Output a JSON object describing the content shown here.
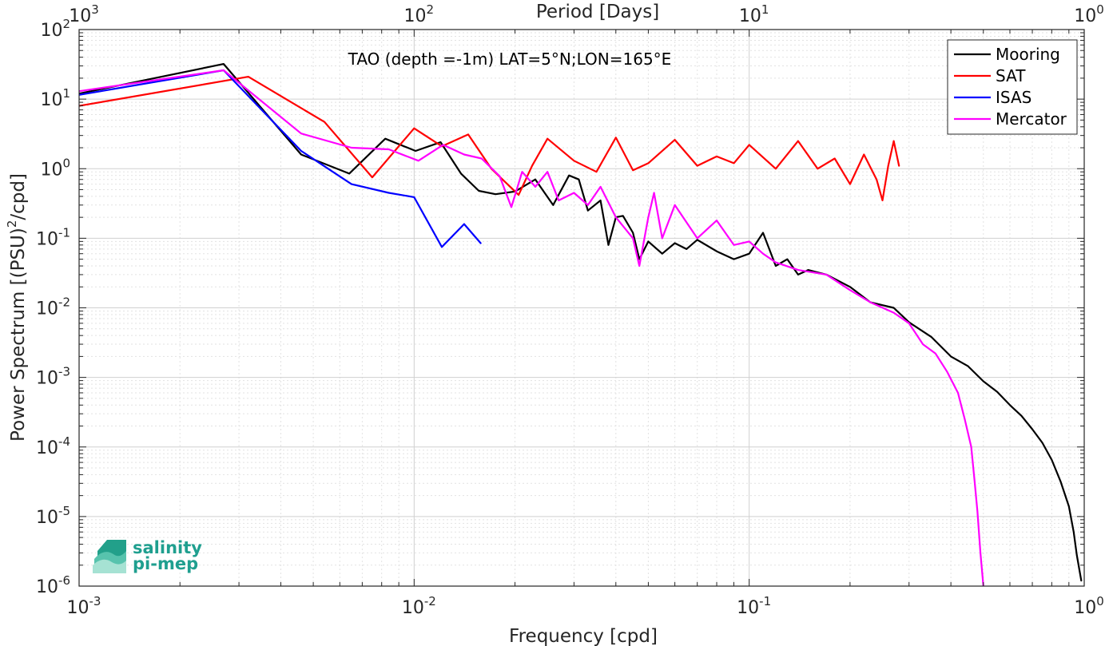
{
  "chart_data": {
    "type": "line",
    "annotation": "TAO (depth =-1m) LAT=5°N;LON=165°E",
    "xlabel": "Frequency [cpd]",
    "ylabel_parts": [
      "Power Spectrum [(PSU)",
      "2",
      "/cpd]"
    ],
    "x2label": "Period [Days]",
    "x_scale": "log",
    "y_scale": "log",
    "xlim": [
      0.001,
      1
    ],
    "ylim": [
      1e-06,
      100
    ],
    "x2lim": [
      1000,
      1
    ],
    "grid": true,
    "legend_position": "top-right",
    "x_ticks": [
      {
        "base": "10",
        "exp": "-3"
      },
      {
        "base": "10",
        "exp": "-2"
      },
      {
        "base": "10",
        "exp": "-1"
      },
      {
        "base": "10",
        "exp": "0"
      }
    ],
    "y_ticks": [
      {
        "base": "10",
        "exp": "2"
      },
      {
        "base": "10",
        "exp": "1"
      },
      {
        "base": "10",
        "exp": "0"
      },
      {
        "base": "10",
        "exp": "-1"
      },
      {
        "base": "10",
        "exp": "-2"
      },
      {
        "base": "10",
        "exp": "-3"
      },
      {
        "base": "10",
        "exp": "-4"
      },
      {
        "base": "10",
        "exp": "-5"
      },
      {
        "base": "10",
        "exp": "-6"
      }
    ],
    "x2_ticks": [
      {
        "base": "10",
        "exp": "3"
      },
      {
        "base": "10",
        "exp": "2"
      },
      {
        "base": "10",
        "exp": "1"
      },
      {
        "base": "10",
        "exp": "0"
      }
    ],
    "series": [
      {
        "name": "Mooring",
        "color": "#000000",
        "points": [
          [
            0.001,
            12
          ],
          [
            0.0027,
            32
          ],
          [
            0.0046,
            1.6
          ],
          [
            0.0064,
            0.85
          ],
          [
            0.0082,
            2.7
          ],
          [
            0.0101,
            1.8
          ],
          [
            0.012,
            2.4
          ],
          [
            0.0138,
            0.85
          ],
          [
            0.0156,
            0.48
          ],
          [
            0.0175,
            0.43
          ],
          [
            0.02,
            0.47
          ],
          [
            0.023,
            0.7
          ],
          [
            0.026,
            0.3
          ],
          [
            0.029,
            0.8
          ],
          [
            0.031,
            0.7
          ],
          [
            0.033,
            0.25
          ],
          [
            0.036,
            0.35
          ],
          [
            0.038,
            0.08
          ],
          [
            0.04,
            0.2
          ],
          [
            0.042,
            0.21
          ],
          [
            0.045,
            0.12
          ],
          [
            0.047,
            0.05
          ],
          [
            0.05,
            0.09
          ],
          [
            0.055,
            0.06
          ],
          [
            0.06,
            0.085
          ],
          [
            0.065,
            0.07
          ],
          [
            0.07,
            0.095
          ],
          [
            0.08,
            0.065
          ],
          [
            0.09,
            0.05
          ],
          [
            0.1,
            0.06
          ],
          [
            0.11,
            0.12
          ],
          [
            0.12,
            0.04
          ],
          [
            0.13,
            0.05
          ],
          [
            0.14,
            0.03
          ],
          [
            0.15,
            0.035
          ],
          [
            0.17,
            0.03
          ],
          [
            0.2,
            0.02
          ],
          [
            0.23,
            0.012
          ],
          [
            0.27,
            0.01
          ],
          [
            0.3,
            0.0062
          ],
          [
            0.35,
            0.0038
          ],
          [
            0.4,
            0.002
          ],
          [
            0.45,
            0.00145
          ],
          [
            0.5,
            0.00088
          ],
          [
            0.55,
            0.00062
          ],
          [
            0.6,
            0.0004
          ],
          [
            0.65,
            0.00028
          ],
          [
            0.7,
            0.00018
          ],
          [
            0.75,
            0.000115
          ],
          [
            0.8,
            6.5e-05
          ],
          [
            0.85,
            3.2e-05
          ],
          [
            0.9,
            1.4e-05
          ],
          [
            0.93,
            6e-06
          ],
          [
            0.95,
            2.8e-06
          ],
          [
            0.98,
            1.2e-06
          ]
        ]
      },
      {
        "name": "SAT",
        "color": "#ff0000",
        "points": [
          [
            0.001,
            8
          ],
          [
            0.0032,
            21
          ],
          [
            0.0054,
            4.7
          ],
          [
            0.0075,
            0.75
          ],
          [
            0.01,
            3.8
          ],
          [
            0.0121,
            2.1
          ],
          [
            0.0145,
            3.1
          ],
          [
            0.017,
            1.0
          ],
          [
            0.0205,
            0.42
          ],
          [
            0.0225,
            1.1
          ],
          [
            0.025,
            2.7
          ],
          [
            0.03,
            1.3
          ],
          [
            0.035,
            0.9
          ],
          [
            0.04,
            2.8
          ],
          [
            0.045,
            0.95
          ],
          [
            0.05,
            1.2
          ],
          [
            0.06,
            2.6
          ],
          [
            0.07,
            1.1
          ],
          [
            0.08,
            1.5
          ],
          [
            0.09,
            1.2
          ],
          [
            0.1,
            2.2
          ],
          [
            0.12,
            1.0
          ],
          [
            0.14,
            2.5
          ],
          [
            0.16,
            1.0
          ],
          [
            0.18,
            1.4
          ],
          [
            0.2,
            0.6
          ],
          [
            0.22,
            1.6
          ],
          [
            0.24,
            0.7
          ],
          [
            0.25,
            0.35
          ],
          [
            0.26,
            1.1
          ],
          [
            0.27,
            2.5
          ],
          [
            0.28,
            1.1
          ]
        ]
      },
      {
        "name": "ISAS",
        "color": "#0000ff",
        "points": [
          [
            0.001,
            11.5
          ],
          [
            0.0027,
            26
          ],
          [
            0.0046,
            1.8
          ],
          [
            0.0065,
            0.6
          ],
          [
            0.0084,
            0.45
          ],
          [
            0.01,
            0.39
          ],
          [
            0.0121,
            0.075
          ],
          [
            0.0141,
            0.16
          ],
          [
            0.0158,
            0.085
          ]
        ]
      },
      {
        "name": "Mercator",
        "color": "#ff00ff",
        "points": [
          [
            0.001,
            13
          ],
          [
            0.0027,
            26
          ],
          [
            0.0046,
            3.2
          ],
          [
            0.0065,
            2.0
          ],
          [
            0.0084,
            1.9
          ],
          [
            0.0103,
            1.3
          ],
          [
            0.0122,
            2.2
          ],
          [
            0.0141,
            1.6
          ],
          [
            0.0159,
            1.4
          ],
          [
            0.018,
            0.78
          ],
          [
            0.0195,
            0.28
          ],
          [
            0.021,
            0.9
          ],
          [
            0.023,
            0.55
          ],
          [
            0.025,
            0.9
          ],
          [
            0.027,
            0.35
          ],
          [
            0.03,
            0.45
          ],
          [
            0.033,
            0.3
          ],
          [
            0.036,
            0.55
          ],
          [
            0.04,
            0.2
          ],
          [
            0.045,
            0.1
          ],
          [
            0.047,
            0.04
          ],
          [
            0.05,
            0.2
          ],
          [
            0.052,
            0.45
          ],
          [
            0.055,
            0.1
          ],
          [
            0.06,
            0.3
          ],
          [
            0.07,
            0.1
          ],
          [
            0.08,
            0.18
          ],
          [
            0.09,
            0.08
          ],
          [
            0.1,
            0.09
          ],
          [
            0.11,
            0.06
          ],
          [
            0.12,
            0.045
          ],
          [
            0.14,
            0.035
          ],
          [
            0.17,
            0.03
          ],
          [
            0.2,
            0.018
          ],
          [
            0.23,
            0.012
          ],
          [
            0.27,
            0.0085
          ],
          [
            0.3,
            0.006
          ],
          [
            0.33,
            0.003
          ],
          [
            0.36,
            0.0022
          ],
          [
            0.39,
            0.0012
          ],
          [
            0.42,
            0.0006
          ],
          [
            0.44,
            0.00025
          ],
          [
            0.46,
            0.0001
          ],
          [
            0.47,
            3.5e-05
          ],
          [
            0.48,
            1.2e-05
          ],
          [
            0.49,
            3e-06
          ],
          [
            0.5,
            1e-06
          ]
        ]
      }
    ]
  },
  "logo": {
    "line1": "salinity",
    "line2": "pi-mep"
  }
}
